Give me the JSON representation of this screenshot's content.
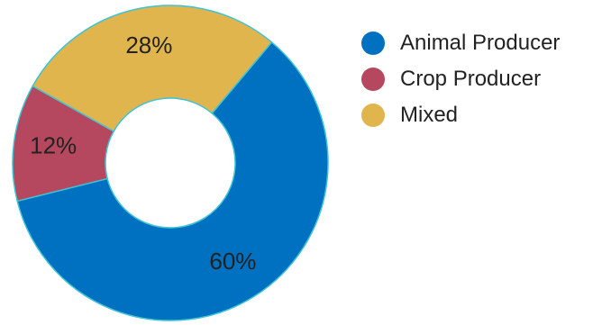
{
  "chart_data": {
    "type": "pie",
    "title": "",
    "legend_position": "right",
    "donut": true,
    "categories": [
      "Animal Producer",
      "Crop Producer",
      "Mixed"
    ],
    "values": [
      60,
      12,
      28
    ],
    "value_labels": [
      "60%",
      "12%",
      "28%"
    ],
    "colors": [
      "#0070C0",
      "#B5485F",
      "#E1B54E"
    ],
    "edge_color": "#3EC3D5"
  },
  "legend": {
    "items": [
      {
        "label": "Animal Producer",
        "color": "#0070C0"
      },
      {
        "label": "Crop Producer",
        "color": "#B5485F"
      },
      {
        "label": "Mixed",
        "color": "#E1B54E"
      }
    ]
  }
}
